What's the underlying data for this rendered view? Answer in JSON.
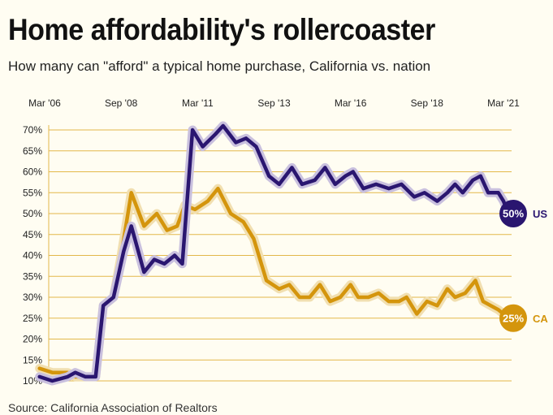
{
  "title": "Home affordability's rollercoaster",
  "subtitle": "How many can \"afford\" a typical home purchase, California vs. nation",
  "source": "Source: California Association of Realtors",
  "colors": {
    "us": "#2a1670",
    "us_halo": "#c9c0de",
    "ca": "#d4950c",
    "ca_halo": "#f1dfb0",
    "grid": "#e3b84a"
  },
  "chart_data": {
    "type": "line",
    "x_ticks": [
      "Mar '06",
      "Sep '08",
      "Mar '11",
      "Sep '13",
      "Mar '16",
      "Sep '18",
      "Mar '21"
    ],
    "y_ticks": [
      "70%",
      "65%",
      "60%",
      "55%",
      "50%",
      "45%",
      "40%",
      "35%",
      "30%",
      "25%",
      "20%",
      "15%",
      "10%"
    ],
    "ylim": [
      10,
      70
    ],
    "xlim": [
      "2006-01",
      "2021-06"
    ],
    "series": [
      {
        "name": "US",
        "end_label": "50%",
        "series_label": "US",
        "points": [
          [
            "2006-01",
            11
          ],
          [
            "2006-06",
            10
          ],
          [
            "2006-12",
            11
          ],
          [
            "2007-03",
            12
          ],
          [
            "2007-07",
            11
          ],
          [
            "2007-11",
            11
          ],
          [
            "2008-02",
            28
          ],
          [
            "2008-06",
            30
          ],
          [
            "2008-10",
            41
          ],
          [
            "2009-01",
            47
          ],
          [
            "2009-06",
            36
          ],
          [
            "2009-10",
            39
          ],
          [
            "2010-02",
            38
          ],
          [
            "2010-06",
            40
          ],
          [
            "2010-09",
            38
          ],
          [
            "2011-01",
            70
          ],
          [
            "2011-05",
            66
          ],
          [
            "2011-10",
            69
          ],
          [
            "2012-01",
            71
          ],
          [
            "2012-06",
            67
          ],
          [
            "2012-10",
            68
          ],
          [
            "2013-02",
            66
          ],
          [
            "2013-07",
            59
          ],
          [
            "2013-11",
            57
          ],
          [
            "2014-04",
            61
          ],
          [
            "2014-08",
            57
          ],
          [
            "2015-01",
            58
          ],
          [
            "2015-05",
            61
          ],
          [
            "2015-09",
            57
          ],
          [
            "2016-01",
            59
          ],
          [
            "2016-04",
            60
          ],
          [
            "2016-08",
            56
          ],
          [
            "2017-01",
            57
          ],
          [
            "2017-06",
            56
          ],
          [
            "2017-11",
            57
          ],
          [
            "2018-04",
            54
          ],
          [
            "2018-08",
            55
          ],
          [
            "2019-01",
            53
          ],
          [
            "2019-05",
            55
          ],
          [
            "2019-08",
            57
          ],
          [
            "2019-11",
            55
          ],
          [
            "2020-03",
            58
          ],
          [
            "2020-06",
            59
          ],
          [
            "2020-09",
            55
          ],
          [
            "2021-01",
            55
          ],
          [
            "2021-03",
            53
          ],
          [
            "2021-05",
            50
          ]
        ]
      },
      {
        "name": "CA",
        "end_label": "25%",
        "series_label": "CA",
        "points": [
          [
            "2006-01",
            13
          ],
          [
            "2006-06",
            12
          ],
          [
            "2006-12",
            12
          ],
          [
            "2007-03",
            11
          ],
          [
            "2007-07",
            11
          ],
          [
            "2007-11",
            11
          ],
          [
            "2008-02",
            28
          ],
          [
            "2008-06",
            30
          ],
          [
            "2008-09",
            40
          ],
          [
            "2009-01",
            55
          ],
          [
            "2009-06",
            47
          ],
          [
            "2009-11",
            50
          ],
          [
            "2010-03",
            46
          ],
          [
            "2010-07",
            47
          ],
          [
            "2010-10",
            52
          ],
          [
            "2011-02",
            51
          ],
          [
            "2011-07",
            53
          ],
          [
            "2011-11",
            56
          ],
          [
            "2012-04",
            50
          ],
          [
            "2012-09",
            48
          ],
          [
            "2013-01",
            44
          ],
          [
            "2013-06",
            34
          ],
          [
            "2013-11",
            32
          ],
          [
            "2014-03",
            33
          ],
          [
            "2014-07",
            30
          ],
          [
            "2014-11",
            30
          ],
          [
            "2015-03",
            33
          ],
          [
            "2015-07",
            29
          ],
          [
            "2015-11",
            30
          ],
          [
            "2016-03",
            33
          ],
          [
            "2016-06",
            30
          ],
          [
            "2016-10",
            30
          ],
          [
            "2017-02",
            31
          ],
          [
            "2017-06",
            29
          ],
          [
            "2017-10",
            29
          ],
          [
            "2018-01",
            30
          ],
          [
            "2018-05",
            26
          ],
          [
            "2018-09",
            29
          ],
          [
            "2019-01",
            28
          ],
          [
            "2019-05",
            32
          ],
          [
            "2019-08",
            30
          ],
          [
            "2019-12",
            31
          ],
          [
            "2020-04",
            34
          ],
          [
            "2020-07",
            29
          ],
          [
            "2020-10",
            28
          ],
          [
            "2021-01",
            27
          ],
          [
            "2021-05",
            25
          ]
        ]
      }
    ]
  }
}
